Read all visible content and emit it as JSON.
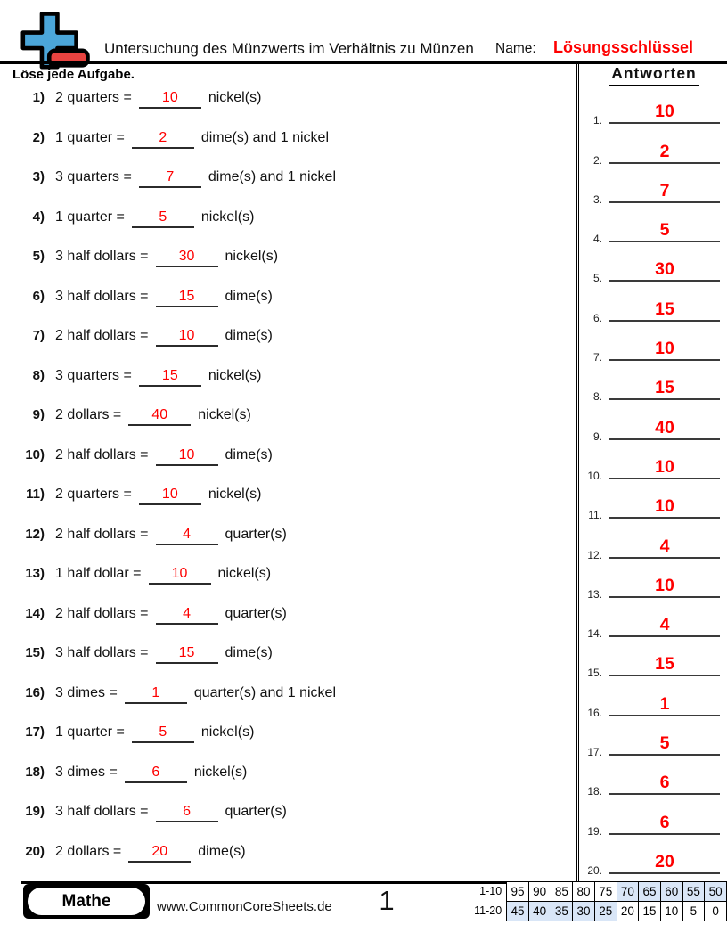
{
  "header": {
    "title": "Untersuchung des Münzwerts im Verhältnis zu Münzen",
    "name_label": "Name:",
    "answer_key_label": "Lösungsschlüssel",
    "instruction": "Löse jede Aufgabe.",
    "answers_title": "Antworten"
  },
  "icon": {
    "name": "plus-minus-logo",
    "plus_color": "#4BA6D9",
    "minus_color": "#E84340"
  },
  "colors": {
    "accent_red": "#FE0000",
    "score_highlight": "#D9E6F7"
  },
  "problems": [
    {
      "num": "1)",
      "before": "2 quarters =",
      "answer": "10",
      "after": "nickel(s)"
    },
    {
      "num": "2)",
      "before": "1 quarter =",
      "answer": "2",
      "after": "dime(s) and 1 nickel"
    },
    {
      "num": "3)",
      "before": "3 quarters =",
      "answer": "7",
      "after": "dime(s) and 1 nickel"
    },
    {
      "num": "4)",
      "before": "1 quarter =",
      "answer": "5",
      "after": "nickel(s)"
    },
    {
      "num": "5)",
      "before": "3 half dollars =",
      "answer": "30",
      "after": "nickel(s)"
    },
    {
      "num": "6)",
      "before": "3 half dollars =",
      "answer": "15",
      "after": "dime(s)"
    },
    {
      "num": "7)",
      "before": "2 half dollars =",
      "answer": "10",
      "after": "dime(s)"
    },
    {
      "num": "8)",
      "before": "3 quarters =",
      "answer": "15",
      "after": "nickel(s)"
    },
    {
      "num": "9)",
      "before": "2 dollars =",
      "answer": "40",
      "after": "nickel(s)"
    },
    {
      "num": "10)",
      "before": "2 half dollars =",
      "answer": "10",
      "after": "dime(s)"
    },
    {
      "num": "11)",
      "before": "2 quarters =",
      "answer": "10",
      "after": "nickel(s)"
    },
    {
      "num": "12)",
      "before": "2 half dollars =",
      "answer": "4",
      "after": "quarter(s)"
    },
    {
      "num": "13)",
      "before": "1 half dollar =",
      "answer": "10",
      "after": "nickel(s)"
    },
    {
      "num": "14)",
      "before": "2 half dollars =",
      "answer": "4",
      "after": "quarter(s)"
    },
    {
      "num": "15)",
      "before": "3 half dollars =",
      "answer": "15",
      "after": "dime(s)"
    },
    {
      "num": "16)",
      "before": "3 dimes =",
      "answer": "1",
      "after": "quarter(s) and 1 nickel"
    },
    {
      "num": "17)",
      "before": "1 quarter =",
      "answer": "5",
      "after": "nickel(s)"
    },
    {
      "num": "18)",
      "before": "3 dimes =",
      "answer": "6",
      "after": "nickel(s)"
    },
    {
      "num": "19)",
      "before": "3 half dollars =",
      "answer": "6",
      "after": "quarter(s)"
    },
    {
      "num": "20)",
      "before": "2 dollars =",
      "answer": "20",
      "after": "dime(s)"
    }
  ],
  "answers": [
    {
      "num": "1.",
      "value": "10"
    },
    {
      "num": "2.",
      "value": "2"
    },
    {
      "num": "3.",
      "value": "7"
    },
    {
      "num": "4.",
      "value": "5"
    },
    {
      "num": "5.",
      "value": "30"
    },
    {
      "num": "6.",
      "value": "15"
    },
    {
      "num": "7.",
      "value": "10"
    },
    {
      "num": "8.",
      "value": "15"
    },
    {
      "num": "9.",
      "value": "40"
    },
    {
      "num": "10.",
      "value": "10"
    },
    {
      "num": "11.",
      "value": "10"
    },
    {
      "num": "12.",
      "value": "4"
    },
    {
      "num": "13.",
      "value": "10"
    },
    {
      "num": "14.",
      "value": "4"
    },
    {
      "num": "15.",
      "value": "15"
    },
    {
      "num": "16.",
      "value": "1"
    },
    {
      "num": "17.",
      "value": "5"
    },
    {
      "num": "18.",
      "value": "6"
    },
    {
      "num": "19.",
      "value": "6"
    },
    {
      "num": "20.",
      "value": "20"
    }
  ],
  "footer": {
    "subject": "Mathe",
    "website": "www.CommonCoreSheets.de",
    "page": "1",
    "score_table": {
      "row1_label": "1-10",
      "row1": [
        "95",
        "90",
        "85",
        "80",
        "75",
        "70",
        "65",
        "60",
        "55",
        "50"
      ],
      "row1_highlight": [
        false,
        false,
        false,
        false,
        false,
        true,
        true,
        true,
        true,
        true
      ],
      "row2_label": "11-20",
      "row2": [
        "45",
        "40",
        "35",
        "30",
        "25",
        "20",
        "15",
        "10",
        "5",
        "0"
      ],
      "row2_highlight": [
        true,
        true,
        true,
        true,
        true,
        false,
        false,
        false,
        false,
        false
      ]
    }
  }
}
